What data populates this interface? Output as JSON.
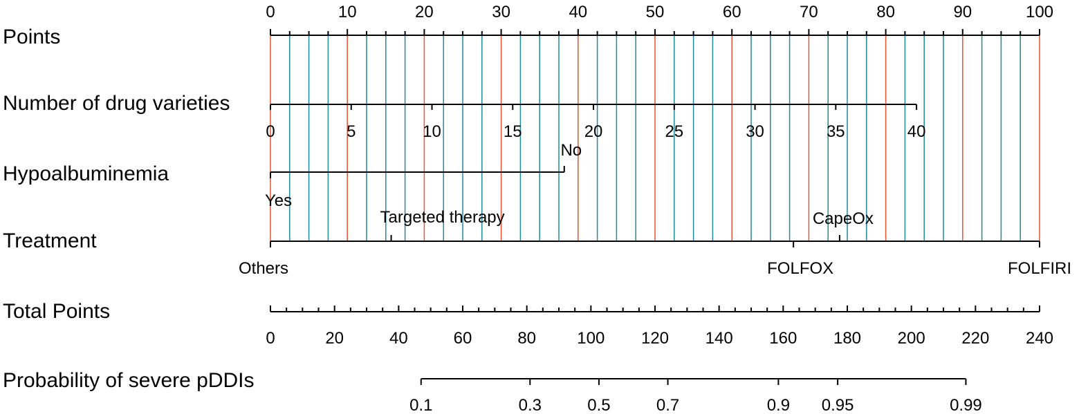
{
  "chart_data": {
    "type": "nomogram",
    "title": "",
    "colors": {
      "major_gridline": "#e8542f",
      "minor_gridline": "#1f8a99",
      "axis": "#000000"
    },
    "rows": [
      {
        "key": "points",
        "label": "Points",
        "range": [
          0,
          100
        ],
        "ticks": [
          0,
          10,
          20,
          30,
          40,
          50,
          60,
          70,
          80,
          90,
          100
        ],
        "tick_labels": [
          "0",
          "10",
          "20",
          "30",
          "40",
          "50",
          "60",
          "70",
          "80",
          "90",
          "100"
        ],
        "minor_step": 2.5
      },
      {
        "key": "drug_varieties",
        "label": "Number of drug varieties",
        "values": [
          0,
          5,
          10,
          15,
          20,
          25,
          30,
          35,
          40
        ],
        "tick_labels": [
          "0",
          "5",
          "10",
          "15",
          "20",
          "25",
          "30",
          "35",
          "40"
        ],
        "points": [
          0,
          10.5,
          21,
          31.5,
          42,
          52.5,
          63,
          73.5,
          84
        ]
      },
      {
        "key": "hypoalbuminemia",
        "label": "Hypoalbuminemia",
        "categories": [
          "Yes",
          "No"
        ],
        "points": [
          0,
          38.2
        ]
      },
      {
        "key": "treatment",
        "label": "Treatment",
        "categories": [
          "Others",
          "Targeted therapy",
          "FOLFOX",
          "CapeOx",
          "FOLFIRI"
        ],
        "points": [
          0,
          15.7,
          68,
          74,
          100
        ]
      },
      {
        "key": "total_points",
        "label": "Total Points",
        "range": [
          0,
          240
        ],
        "ticks": [
          0,
          20,
          40,
          60,
          80,
          100,
          120,
          140,
          160,
          180,
          200,
          220,
          240
        ],
        "tick_labels": [
          "0",
          "20",
          "40",
          "60",
          "80",
          "100",
          "120",
          "140",
          "160",
          "180",
          "200",
          "220",
          "240"
        ],
        "minor_step": 5
      },
      {
        "key": "probability",
        "label": "Probability of severe pDDIs",
        "values": [
          0.1,
          0.3,
          0.5,
          0.7,
          0.9,
          0.95,
          0.99
        ],
        "tick_labels": [
          "0.1",
          "0.3",
          "0.5",
          "0.7",
          "0.9",
          "0.95",
          "0.99"
        ],
        "total_points": [
          47,
          81,
          102.5,
          124,
          158.5,
          177,
          217
        ]
      }
    ]
  }
}
